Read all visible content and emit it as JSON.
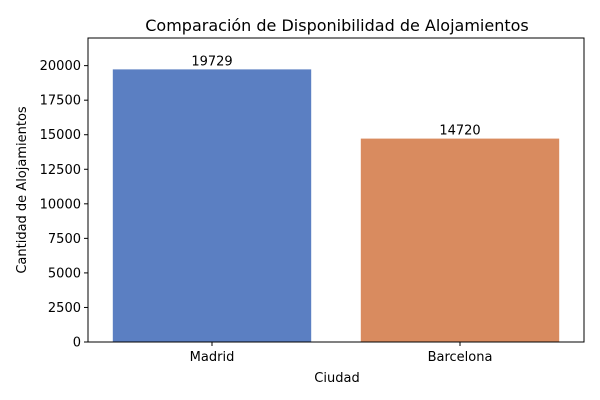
{
  "chart_data": {
    "type": "bar",
    "title": "Comparación de Disponibilidad de Alojamientos",
    "xlabel": "Ciudad",
    "ylabel": "Cantidad de Alojamientos",
    "categories": [
      "Madrid",
      "Barcelona"
    ],
    "values": [
      19729,
      14720
    ],
    "value_labels": [
      "19729",
      "14720"
    ],
    "colors": [
      "#5b7fc2",
      "#d98b5f"
    ],
    "ylim": [
      0,
      22000
    ],
    "yticks": [
      0,
      2500,
      5000,
      7500,
      10000,
      12500,
      15000,
      17500,
      20000
    ],
    "grid": false,
    "legend": "none"
  }
}
